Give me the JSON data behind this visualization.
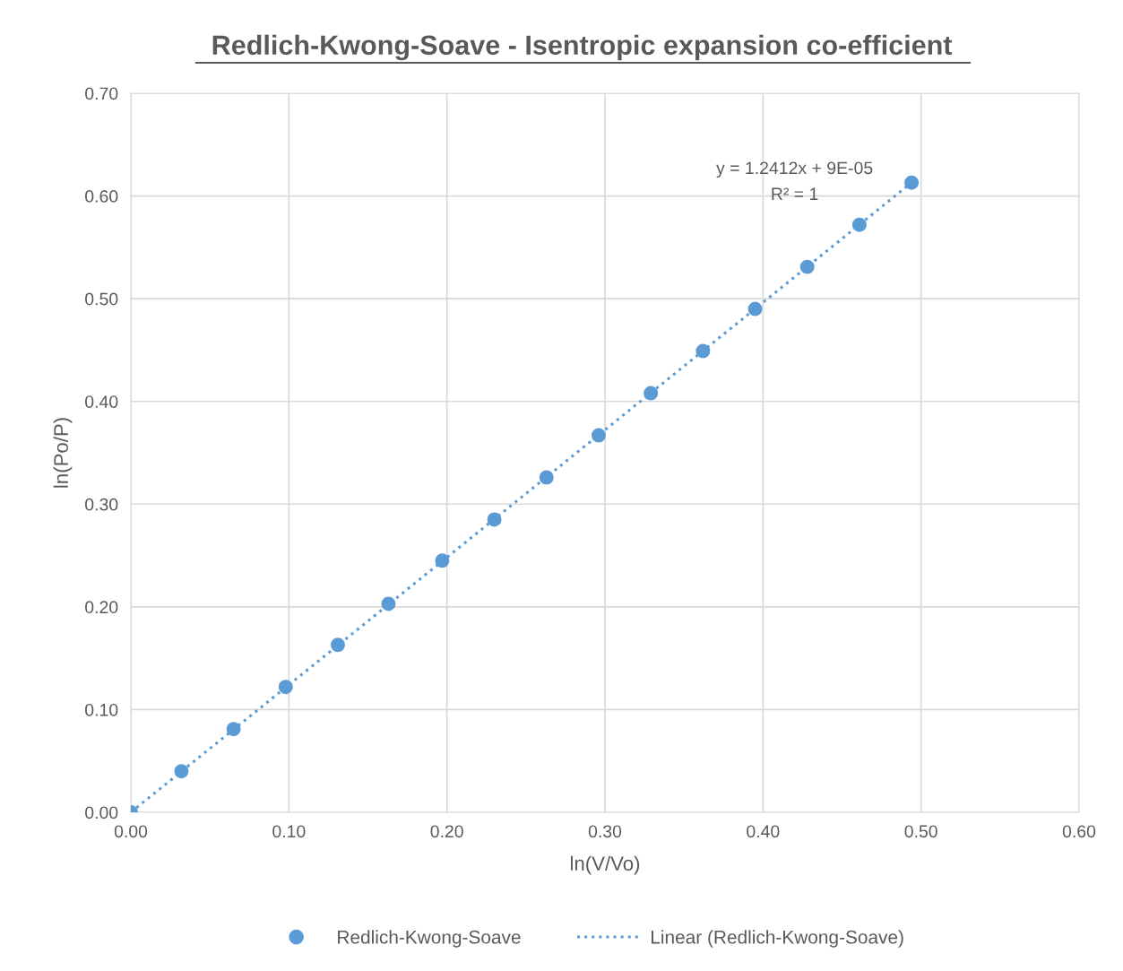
{
  "chart_data": {
    "type": "scatter",
    "title": "Redlich-Kwong-Soave - Isentropic expansion co-efficient",
    "xlabel": "ln(V/Vo)",
    "ylabel": "ln(Po/P)",
    "series": [
      {
        "name": "Redlich-Kwong-Soave",
        "color": "#5b9bd5",
        "marker": "circle",
        "x": [
          0,
          0.032,
          0.065,
          0.098,
          0.131,
          0.163,
          0.197,
          0.23,
          0.263,
          0.296,
          0.329,
          0.362,
          0.395,
          0.428,
          0.461,
          0.494
        ],
        "values": [
          0,
          0.04,
          0.081,
          0.122,
          0.163,
          0.203,
          0.245,
          0.285,
          0.326,
          0.367,
          0.408,
          0.449,
          0.49,
          0.531,
          0.572,
          0.613
        ]
      },
      {
        "name": "Linear (Redlich-Kwong-Soave)",
        "type": "line",
        "color": "#5b9bd5",
        "line_style": "dotted",
        "marker": "none",
        "x": [
          0,
          0.494
        ],
        "values": [
          0,
          0.613
        ]
      }
    ],
    "annotations": [
      "y = 1.2412x + 9E-05",
      "R² = 1"
    ],
    "xlim": [
      0,
      0.6
    ],
    "xticks": [
      {
        "value": 0,
        "label": "0.00"
      },
      {
        "value": 0.1,
        "label": "0.10"
      },
      {
        "value": 0.2,
        "label": "0.20"
      },
      {
        "value": 0.3,
        "label": "0.30"
      },
      {
        "value": 0.4,
        "label": "0.40"
      },
      {
        "value": 0.5,
        "label": "0.50"
      },
      {
        "value": 0.6,
        "label": "0.60"
      }
    ],
    "ylim": [
      0,
      0.7
    ],
    "yticks": [
      {
        "value": 0,
        "label": "0.00"
      },
      {
        "value": 0.1,
        "label": "0.10"
      },
      {
        "value": 0.2,
        "label": "0.20"
      },
      {
        "value": 0.3,
        "label": "0.30"
      },
      {
        "value": 0.4,
        "label": "0.40"
      },
      {
        "value": 0.5,
        "label": "0.50"
      },
      {
        "value": 0.6,
        "label": "0.60"
      },
      {
        "value": 0.7,
        "label": "0.70"
      }
    ],
    "grid": true,
    "legend": "bottom"
  }
}
